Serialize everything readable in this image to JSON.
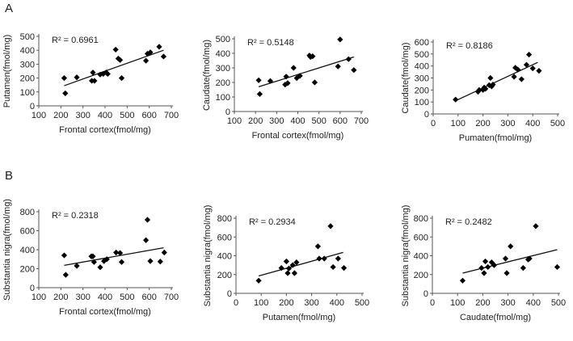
{
  "panels": [
    {
      "letter": "A"
    },
    {
      "letter": "B"
    }
  ],
  "colors": {
    "marker": "#000000",
    "line": "#111111",
    "axis": "#555555",
    "text": "#222222"
  },
  "chart_data": [
    {
      "type": "scatter",
      "panel": "A",
      "title": "",
      "xlabel": "Frontal cortex(fmol/mg)",
      "ylabel": "Putamen(fmol/mg)",
      "xlim": [
        100,
        700
      ],
      "ylim": [
        0,
        500
      ],
      "xticks": [
        100,
        200,
        300,
        400,
        500,
        600,
        700
      ],
      "yticks": [
        0,
        100,
        200,
        300,
        400,
        500
      ],
      "r2_label": "R² = 0.6961",
      "trendline": [
        [
          215,
          145
        ],
        [
          665,
          400
        ]
      ],
      "x": [
        215,
        220,
        272,
        340,
        345,
        352,
        378,
        392,
        405,
        412,
        448,
        460,
        468,
        475,
        585,
        592,
        605,
        645,
        665
      ],
      "y": [
        200,
        90,
        205,
        180,
        240,
        180,
        225,
        230,
        240,
        230,
        405,
        340,
        330,
        200,
        325,
        375,
        385,
        425,
        355
      ]
    },
    {
      "type": "scatter",
      "panel": "A",
      "title": "",
      "xlabel": "Frontal cortex(fmol/mg)",
      "ylabel": "Caudate(fmol/mg)",
      "xlim": [
        100,
        700
      ],
      "ylim": [
        0,
        500
      ],
      "xticks": [
        100,
        200,
        300,
        400,
        500,
        600,
        700
      ],
      "yticks": [
        0,
        100,
        200,
        300,
        400,
        500
      ],
      "r2_label": "R² = 0.5148",
      "trendline": [
        [
          215,
          170
        ],
        [
          665,
          375
        ]
      ],
      "x": [
        215,
        220,
        270,
        340,
        345,
        352,
        380,
        395,
        410,
        455,
        460,
        470,
        480,
        590,
        600,
        640,
        665
      ],
      "y": [
        215,
        120,
        210,
        185,
        240,
        195,
        300,
        230,
        245,
        385,
        375,
        380,
        200,
        310,
        495,
        360,
        285
      ]
    },
    {
      "type": "scatter",
      "panel": "A",
      "title": "",
      "xlabel": "Pumaten(fmol/mg)",
      "ylabel": "Caudate(fmol/mg)",
      "xlim": [
        0,
        500
      ],
      "ylim": [
        0,
        600
      ],
      "xticks": [
        0,
        100,
        200,
        300,
        400,
        500
      ],
      "yticks": [
        0,
        100,
        200,
        300,
        400,
        500,
        600
      ],
      "r2_label": "R² = 0.8186",
      "trendline": [
        [
          90,
          110
        ],
        [
          420,
          430
        ]
      ],
      "x": [
        90,
        180,
        185,
        200,
        205,
        210,
        225,
        230,
        235,
        240,
        325,
        330,
        340,
        355,
        375,
        385,
        400,
        425
      ],
      "y": [
        120,
        185,
        200,
        200,
        220,
        210,
        240,
        300,
        230,
        245,
        310,
        385,
        370,
        290,
        410,
        495,
        380,
        360
      ]
    },
    {
      "type": "scatter",
      "panel": "B",
      "title": "",
      "xlabel": "Frontal cortex(fmol/mg)",
      "ylabel": "Substantia nigra(fmol/mg)",
      "xlim": [
        100,
        700
      ],
      "ylim": [
        0,
        800
      ],
      "xticks": [
        100,
        200,
        300,
        400,
        500,
        600,
        700
      ],
      "yticks": [
        0,
        200,
        400,
        600,
        800
      ],
      "r2_label": "R² = 0.2318",
      "trendline": [
        [
          215,
          235
        ],
        [
          665,
          420
        ]
      ],
      "x": [
        215,
        222,
        272,
        338,
        345,
        350,
        378,
        395,
        408,
        450,
        468,
        475,
        585,
        592,
        605,
        650,
        668
      ],
      "y": [
        340,
        135,
        230,
        330,
        330,
        270,
        215,
        280,
        300,
        370,
        365,
        270,
        500,
        715,
        280,
        275,
        370
      ]
    },
    {
      "type": "scatter",
      "panel": "B",
      "title": "",
      "xlabel": "Putamen(fmol/mg)",
      "ylabel": "Substantia nigra(fmol/mg)",
      "xlim": [
        0,
        500
      ],
      "ylim": [
        0,
        800
      ],
      "xticks": [
        0,
        100,
        200,
        300,
        400,
        500
      ],
      "yticks": [
        0,
        200,
        400,
        600,
        800
      ],
      "r2_label": "R² = 0.2934",
      "trendline": [
        [
          90,
          185
        ],
        [
          425,
          435
        ]
      ],
      "x": [
        90,
        180,
        200,
        205,
        210,
        225,
        232,
        240,
        325,
        330,
        350,
        375,
        385,
        405,
        428
      ],
      "y": [
        135,
        270,
        340,
        215,
        265,
        300,
        215,
        330,
        500,
        370,
        370,
        715,
        280,
        370,
        270
      ]
    },
    {
      "type": "scatter",
      "panel": "B",
      "title": "",
      "xlabel": "Caudate(fmol/mg)",
      "ylabel": "Substantia nigra(fmol/mg)",
      "xlim": [
        0,
        500
      ],
      "ylim": [
        0,
        800
      ],
      "xticks": [
        0,
        100,
        200,
        300,
        400,
        500
      ],
      "yticks": [
        0,
        200,
        400,
        600,
        800
      ],
      "r2_label": "R² = 0.2482",
      "trendline": [
        [
          120,
          215
        ],
        [
          495,
          465
        ]
      ],
      "x": [
        120,
        195,
        205,
        210,
        220,
        235,
        245,
        290,
        295,
        310,
        360,
        380,
        385,
        410,
        495
      ],
      "y": [
        135,
        270,
        215,
        340,
        280,
        330,
        300,
        370,
        215,
        500,
        270,
        360,
        370,
        715,
        280
      ]
    }
  ]
}
